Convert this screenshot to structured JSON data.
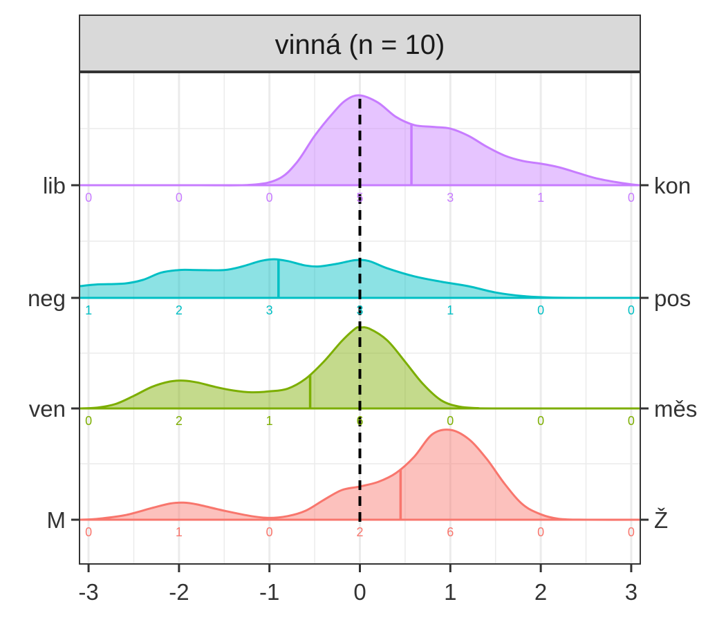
{
  "chart_data": {
    "type": "area",
    "title": "vinná (n = 10)",
    "xlabel": "",
    "ylabel": "",
    "x_ticks": [
      "-3",
      "-2",
      "-1",
      "0",
      "1",
      "2",
      "3"
    ],
    "xlim": [
      -3.1,
      3.1
    ],
    "grid": true,
    "reference_line_x": 0,
    "series": [
      {
        "label_left": "lib",
        "label_right": "kon",
        "color": "#c77cff",
        "mean": 0.57,
        "counts": [
          "0",
          "0",
          "0",
          "5",
          "3",
          "1",
          "0"
        ],
        "density": [
          [
            -3.1,
            0
          ],
          [
            -1.8,
            0
          ],
          [
            -1.2,
            0.005
          ],
          [
            -0.9,
            0.07
          ],
          [
            -0.7,
            0.25
          ],
          [
            -0.5,
            0.55
          ],
          [
            -0.3,
            0.8
          ],
          [
            -0.15,
            0.95
          ],
          [
            0,
            1.0
          ],
          [
            0.2,
            0.92
          ],
          [
            0.4,
            0.76
          ],
          [
            0.6,
            0.67
          ],
          [
            0.8,
            0.65
          ],
          [
            1.0,
            0.63
          ],
          [
            1.2,
            0.55
          ],
          [
            1.4,
            0.43
          ],
          [
            1.6,
            0.33
          ],
          [
            1.8,
            0.27
          ],
          [
            2.0,
            0.24
          ],
          [
            2.2,
            0.2
          ],
          [
            2.4,
            0.14
          ],
          [
            2.6,
            0.08
          ],
          [
            2.8,
            0.04
          ],
          [
            3.0,
            0.01
          ],
          [
            3.1,
            0
          ]
        ]
      },
      {
        "label_left": "neg",
        "label_right": "pos",
        "color": "#00bfc4",
        "mean": -0.9,
        "counts": [
          "1",
          "2",
          "3",
          "3",
          "1",
          "0",
          "0"
        ],
        "density": [
          [
            -3.1,
            0.13
          ],
          [
            -2.9,
            0.15
          ],
          [
            -2.6,
            0.16
          ],
          [
            -2.4,
            0.2
          ],
          [
            -2.2,
            0.28
          ],
          [
            -2.0,
            0.31
          ],
          [
            -1.8,
            0.31
          ],
          [
            -1.5,
            0.31
          ],
          [
            -1.3,
            0.35
          ],
          [
            -1.1,
            0.41
          ],
          [
            -0.95,
            0.43
          ],
          [
            -0.8,
            0.41
          ],
          [
            -0.6,
            0.36
          ],
          [
            -0.45,
            0.35
          ],
          [
            -0.25,
            0.38
          ],
          [
            -0.05,
            0.42
          ],
          [
            0.1,
            0.41
          ],
          [
            0.3,
            0.33
          ],
          [
            0.6,
            0.24
          ],
          [
            0.9,
            0.18
          ],
          [
            1.2,
            0.13
          ],
          [
            1.5,
            0.06
          ],
          [
            1.8,
            0.02
          ],
          [
            2.1,
            0.004
          ],
          [
            2.5,
            0
          ],
          [
            3.1,
            0
          ]
        ]
      },
      {
        "label_left": "ven",
        "label_right": "měs",
        "color": "#7cae00",
        "mean": -0.55,
        "counts": [
          "0",
          "2",
          "1",
          "6",
          "0",
          "0",
          "0"
        ],
        "density": [
          [
            -3.1,
            0
          ],
          [
            -2.9,
            0.01
          ],
          [
            -2.7,
            0.05
          ],
          [
            -2.5,
            0.14
          ],
          [
            -2.3,
            0.24
          ],
          [
            -2.1,
            0.3
          ],
          [
            -1.95,
            0.31
          ],
          [
            -1.8,
            0.29
          ],
          [
            -1.6,
            0.24
          ],
          [
            -1.4,
            0.2
          ],
          [
            -1.2,
            0.18
          ],
          [
            -1.0,
            0.19
          ],
          [
            -0.8,
            0.22
          ],
          [
            -0.6,
            0.33
          ],
          [
            -0.4,
            0.52
          ],
          [
            -0.2,
            0.75
          ],
          [
            -0.05,
            0.89
          ],
          [
            0,
            0.9
          ],
          [
            0.1,
            0.89
          ],
          [
            0.3,
            0.76
          ],
          [
            0.5,
            0.52
          ],
          [
            0.7,
            0.27
          ],
          [
            0.9,
            0.09
          ],
          [
            1.1,
            0.02
          ],
          [
            1.3,
            0.004
          ],
          [
            1.5,
            0
          ],
          [
            3.1,
            0
          ]
        ]
      },
      {
        "label_left": "M",
        "label_right": "Ž",
        "color": "#f8766d",
        "mean": 0.45,
        "counts": [
          "0",
          "1",
          "0",
          "2",
          "6",
          "0",
          "0"
        ],
        "density": [
          [
            -3.1,
            0
          ],
          [
            -2.9,
            0.01
          ],
          [
            -2.6,
            0.05
          ],
          [
            -2.3,
            0.13
          ],
          [
            -2.1,
            0.18
          ],
          [
            -1.95,
            0.19
          ],
          [
            -1.8,
            0.17
          ],
          [
            -1.5,
            0.1
          ],
          [
            -1.2,
            0.04
          ],
          [
            -1.0,
            0.02
          ],
          [
            -0.8,
            0.04
          ],
          [
            -0.6,
            0.1
          ],
          [
            -0.4,
            0.22
          ],
          [
            -0.2,
            0.33
          ],
          [
            0,
            0.37
          ],
          [
            0.2,
            0.42
          ],
          [
            0.4,
            0.52
          ],
          [
            0.6,
            0.7
          ],
          [
            0.8,
            0.95
          ],
          [
            1.0,
            1.0
          ],
          [
            1.2,
            0.9
          ],
          [
            1.4,
            0.68
          ],
          [
            1.6,
            0.4
          ],
          [
            1.8,
            0.17
          ],
          [
            2.0,
            0.06
          ],
          [
            2.2,
            0.01
          ],
          [
            2.5,
            0
          ],
          [
            3.1,
            0
          ]
        ]
      }
    ]
  }
}
